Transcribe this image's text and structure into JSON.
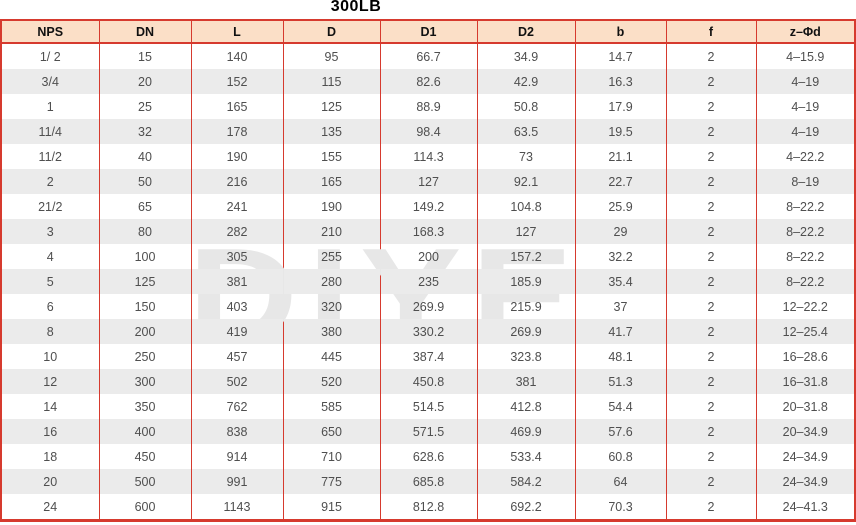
{
  "title": "300LB",
  "watermark": "DIYE",
  "colors": {
    "border_red": "#d63a2e",
    "header_bg": "#fbdfc7",
    "stripe_gray": "#ebebeb",
    "data_text": "#4f4f4f",
    "header_text": "#111111",
    "watermark_gray": "#e7e7e7"
  },
  "table": {
    "columns": [
      "NPS",
      "DN",
      "L",
      "D",
      "D1",
      "D2",
      "b",
      "f",
      "z–Φd"
    ],
    "rows": [
      [
        "1/ 2",
        "15",
        "140",
        "95",
        "66.7",
        "34.9",
        "14.7",
        "2",
        "4–15.9"
      ],
      [
        "3/4",
        "20",
        "152",
        "115",
        "82.6",
        "42.9",
        "16.3",
        "2",
        "4–19"
      ],
      [
        "1",
        "25",
        "165",
        "125",
        "88.9",
        "50.8",
        "17.9",
        "2",
        "4–19"
      ],
      [
        "11/4",
        "32",
        "178",
        "135",
        "98.4",
        "63.5",
        "19.5",
        "2",
        "4–19"
      ],
      [
        "11/2",
        "40",
        "190",
        "155",
        "114.3",
        "73",
        "21.1",
        "2",
        "4–22.2"
      ],
      [
        "2",
        "50",
        "216",
        "165",
        "127",
        "92.1",
        "22.7",
        "2",
        "8–19"
      ],
      [
        "21/2",
        "65",
        "241",
        "190",
        "149.2",
        "104.8",
        "25.9",
        "2",
        "8–22.2"
      ],
      [
        "3",
        "80",
        "282",
        "210",
        "168.3",
        "127",
        "29",
        "2",
        "8–22.2"
      ],
      [
        "4",
        "100",
        "305",
        "255",
        "200",
        "157.2",
        "32.2",
        "2",
        "8–22.2"
      ],
      [
        "5",
        "125",
        "381",
        "280",
        "235",
        "185.9",
        "35.4",
        "2",
        "8–22.2"
      ],
      [
        "6",
        "150",
        "403",
        "320",
        "269.9",
        "215.9",
        "37",
        "2",
        "12–22.2"
      ],
      [
        "8",
        "200",
        "419",
        "380",
        "330.2",
        "269.9",
        "41.7",
        "2",
        "12–25.4"
      ],
      [
        "10",
        "250",
        "457",
        "445",
        "387.4",
        "323.8",
        "48.1",
        "2",
        "16–28.6"
      ],
      [
        "12",
        "300",
        "502",
        "520",
        "450.8",
        "381",
        "51.3",
        "2",
        "16–31.8"
      ],
      [
        "14",
        "350",
        "762",
        "585",
        "514.5",
        "412.8",
        "54.4",
        "2",
        "20–31.8"
      ],
      [
        "16",
        "400",
        "838",
        "650",
        "571.5",
        "469.9",
        "57.6",
        "2",
        "20–34.9"
      ],
      [
        "18",
        "450",
        "914",
        "710",
        "628.6",
        "533.4",
        "60.8",
        "2",
        "24–34.9"
      ],
      [
        "20",
        "500",
        "991",
        "775",
        "685.8",
        "584.2",
        "64",
        "2",
        "24–34.9"
      ],
      [
        "24",
        "600",
        "1143",
        "915",
        "812.8",
        "692.2",
        "70.3",
        "2",
        "24–41.3"
      ]
    ]
  }
}
